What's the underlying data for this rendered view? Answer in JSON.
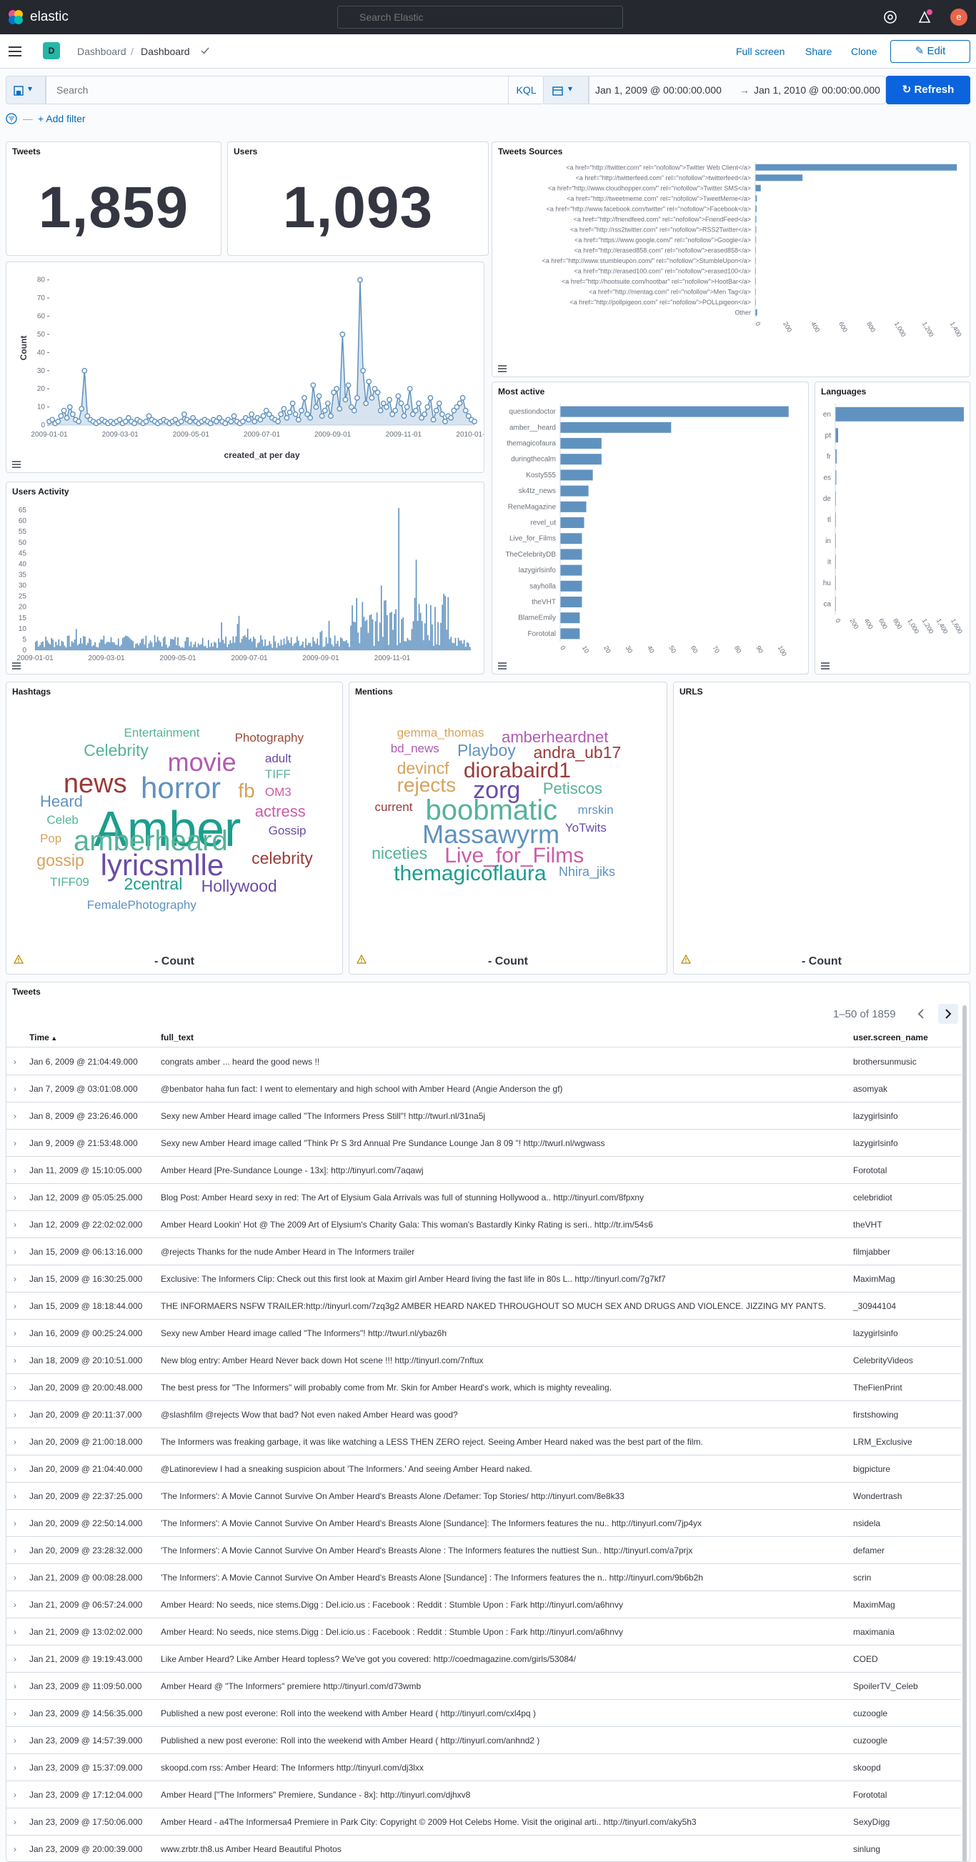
{
  "app": {
    "brand": "elastic",
    "search_placeholder": "Search Elastic",
    "user_initial": "e"
  },
  "nav": {
    "space_initial": "D",
    "breadcrumb": [
      "Dashboard",
      "Dashboard"
    ],
    "links": [
      "Full screen",
      "Share",
      "Clone"
    ],
    "edit_label": "Edit"
  },
  "query": {
    "placeholder": "Search",
    "language": "KQL",
    "start": "Jan 1, 2009 @ 00:00:00.000",
    "arrow": "→",
    "end": "Jan 1, 2010 @ 00:00:00.000",
    "refresh_label": "Refresh"
  },
  "filters": {
    "add_label": "+ Add filter"
  },
  "metrics": [
    {
      "title": "Tweets",
      "value": "1,859"
    },
    {
      "title": "Users",
      "value": "1,093"
    }
  ],
  "sources": {
    "title": "Tweets Sources",
    "labels": [
      "<a href=\"http://twitter.com\" rel=\"nofollow\">Twitter Web Client</a>",
      "<a href=\"http://twitterfeed.com\" rel=\"nofollow\">twitterfeed</a>",
      "<a href=\"http://www.cloudhopper.com/\" rel=\"nofollow\">Twitter SMS</a>",
      "<a href=\"http://tweetmeme.com\" rel=\"nofollow\">TweetMeme</a>",
      "<a href=\"http://www.facebook.com/twitter\" rel=\"nofollow\">Facebook</a>",
      "<a href=\"http://friendfeed.com\" rel=\"nofollow\">FriendFeed</a>",
      "<a href=\"http://rss2twitter.com\" rel=\"nofollow\">RSS2Twitter</a>",
      "<a href=\"https://www.google.com/\" rel=\"nofollow\">Google</a>",
      "<a href=\"http://erased858.com\" rel=\"nofollow\">erased858</a>",
      "<a href=\"http://www.stumbleupon.com/\" rel=\"nofollow\">StumbleUpon</a>",
      "<a href=\"http://erased100.com\" rel=\"nofollow\">erased100</a>",
      "<a href=\"http://hootsuite.com/hootbar\" rel=\"nofollow\">HootBar</a>",
      "<a href=\"http://mentag.com\" rel=\"nofollow\">Men Tag</a>",
      "<a href=\"http://pollpigeon.com\" rel=\"nofollow\">POLLpigeon</a>",
      "Other"
    ],
    "values": [
      1450,
      340,
      40,
      12,
      10,
      8,
      7,
      6,
      5,
      4,
      3,
      3,
      2,
      2,
      14
    ],
    "ticks": [
      "0",
      "200",
      "400",
      "600",
      "800",
      "1,000",
      "1,200",
      "1,400"
    ],
    "xmax": 1500
  },
  "created": {
    "xlabel": "created_at per day",
    "ylabel": "Count",
    "xticks": [
      "2009-01-01",
      "2009-03-01",
      "2009-05-01",
      "2009-07-01",
      "2009-09-01",
      "2009-11-01",
      "2010-01-01"
    ],
    "yticks": [
      "0",
      "10",
      "20",
      "30",
      "40",
      "50",
      "60",
      "70",
      "80"
    ],
    "ymax": 85,
    "points": [
      2,
      3,
      1,
      2,
      5,
      8,
      4,
      10,
      6,
      3,
      2,
      9,
      30,
      5,
      3,
      2,
      1,
      2,
      3,
      2,
      1,
      2,
      1,
      2,
      3,
      1,
      2,
      4,
      2,
      1,
      3,
      2,
      1,
      2,
      5,
      3,
      2,
      1,
      2,
      3,
      2,
      1,
      2,
      3,
      1,
      2,
      6,
      3,
      2,
      4,
      2,
      1,
      2,
      3,
      2,
      1,
      3,
      2,
      4,
      2,
      1,
      3,
      2,
      5,
      2,
      1,
      2,
      4,
      3,
      6,
      2,
      4,
      3,
      5,
      8,
      6,
      4,
      3,
      2,
      6,
      9,
      4,
      7,
      12,
      6,
      3,
      8,
      15,
      6,
      4,
      22,
      10,
      16,
      5,
      8,
      12,
      5,
      18,
      20,
      9,
      50,
      14,
      22,
      10,
      8,
      15,
      80,
      30,
      12,
      24,
      15,
      20,
      18,
      8,
      12,
      10,
      14,
      6,
      8,
      16,
      12,
      5,
      10,
      20,
      6,
      8,
      12,
      4,
      6,
      10,
      15,
      3,
      8,
      12,
      6,
      2,
      5,
      4,
      8,
      10,
      12,
      15,
      8,
      5,
      3,
      2
    ]
  },
  "users_activity": {
    "title": "Users Activity",
    "xticks": [
      "2009-01-01",
      "2009-03-01",
      "2009-05-01",
      "2009-07-01",
      "2009-09-01",
      "2009-11-01"
    ],
    "yticks": [
      "0",
      "5",
      "10",
      "15",
      "20",
      "25",
      "30",
      "35",
      "40",
      "45",
      "50",
      "55",
      "60",
      "65"
    ],
    "ymax": 68
  },
  "most_active": {
    "title": "Most active",
    "labels": [
      "questiondoctor",
      "amber__heard",
      "themagicofaura",
      "duringthecalm",
      "Kosty555",
      "sk4tz_news",
      "ReneMagazine",
      "revel_ut",
      "Live_for_Films",
      "TheCelebrityDB",
      "lazygirlsinfo",
      "sayholla",
      "theVHT",
      "BlameEmily",
      "Forototal"
    ],
    "values": [
      105,
      51,
      19,
      19,
      15,
      13,
      12,
      11,
      10,
      10,
      10,
      10,
      10,
      9,
      9
    ],
    "ticks": [
      "0",
      "10",
      "20",
      "30",
      "40",
      "50",
      "60",
      "70",
      "80",
      "90",
      "100"
    ],
    "xmax": 110
  },
  "languages": {
    "title": "Languages",
    "labels": [
      "en",
      "pt",
      "fr",
      "es",
      "de",
      "tl",
      "in",
      "it",
      "hu",
      "ca"
    ],
    "values": [
      1780,
      40,
      20,
      15,
      10,
      8,
      6,
      5,
      4,
      3
    ],
    "ticks": [
      "0",
      "200",
      "400",
      "600",
      "800",
      "1,000",
      "1,200",
      "1,400",
      "1,600"
    ],
    "xmax": 1800
  },
  "hashtags": {
    "title": "Hashtags",
    "count_label": "- Count",
    "words": [
      {
        "text": "Entertainment",
        "size": 17,
        "color": "#54b399",
        "x": 35,
        "y": 10
      },
      {
        "text": "Photography",
        "size": 17,
        "color": "#9a4a3a",
        "x": 68,
        "y": 12
      },
      {
        "text": "Celebrity",
        "size": 23,
        "color": "#54b399",
        "x": 23,
        "y": 16
      },
      {
        "text": "movie",
        "size": 36,
        "color": "#b05bb0",
        "x": 48,
        "y": 19
      },
      {
        "text": "news",
        "size": 38,
        "color": "#9a3a3a",
        "x": 17,
        "y": 27
      },
      {
        "text": "horror",
        "size": 42,
        "color": "#6092c0",
        "x": 40,
        "y": 28
      },
      {
        "text": "adult",
        "size": 17,
        "color": "#6a4ca8",
        "x": 77,
        "y": 20
      },
      {
        "text": "TIFF",
        "size": 17,
        "color": "#54b399",
        "x": 77,
        "y": 26
      },
      {
        "text": "fb",
        "size": 28,
        "color": "#d6a35c",
        "x": 69,
        "y": 31
      },
      {
        "text": "Heard",
        "size": 22,
        "color": "#6092c0",
        "x": 10,
        "y": 36
      },
      {
        "text": "OM3",
        "size": 17,
        "color": "#ca5ca8",
        "x": 77,
        "y": 33
      },
      {
        "text": "Amber",
        "size": 70,
        "color": "#1c9e8c",
        "x": 26,
        "y": 40
      },
      {
        "text": "Celeb",
        "size": 17,
        "color": "#54b399",
        "x": 12,
        "y": 44
      },
      {
        "text": "actress",
        "size": 22,
        "color": "#ca5ca8",
        "x": 74,
        "y": 40
      },
      {
        "text": "Pop",
        "size": 17,
        "color": "#d6a35c",
        "x": 10,
        "y": 51
      },
      {
        "text": "amberheard",
        "size": 40,
        "color": "#54b399",
        "x": 20,
        "y": 49
      },
      {
        "text": "Gossip",
        "size": 17,
        "color": "#6a4ca8",
        "x": 78,
        "y": 48
      },
      {
        "text": "gossip",
        "size": 23,
        "color": "#d6a35c",
        "x": 9,
        "y": 59
      },
      {
        "text": "lyricsmlle",
        "size": 42,
        "color": "#6a4ca8",
        "x": 28,
        "y": 58
      },
      {
        "text": "celebrity",
        "size": 23,
        "color": "#9a3a3a",
        "x": 73,
        "y": 58
      },
      {
        "text": "TIFF09",
        "size": 17,
        "color": "#54b399",
        "x": 13,
        "y": 68
      },
      {
        "text": "2central",
        "size": 23,
        "color": "#1c9e8c",
        "x": 35,
        "y": 68
      },
      {
        "text": "Hollywood",
        "size": 23,
        "color": "#6a4ca8",
        "x": 58,
        "y": 69
      },
      {
        "text": "FemalePhotography",
        "size": 17,
        "color": "#6092c0",
        "x": 24,
        "y": 77
      }
    ]
  },
  "mentions": {
    "title": "Mentions",
    "count_label": "- Count",
    "words": [
      {
        "text": "gemma_thomas",
        "size": 17,
        "color": "#d6a35c",
        "x": 15,
        "y": 10
      },
      {
        "text": "amberheardnet",
        "size": 22,
        "color": "#b05bb0",
        "x": 48,
        "y": 11
      },
      {
        "text": "bd_news",
        "size": 17,
        "color": "#b05bb0",
        "x": 13,
        "y": 16
      },
      {
        "text": "Playboy",
        "size": 23,
        "color": "#6092c0",
        "x": 34,
        "y": 16
      },
      {
        "text": "andra_ub17",
        "size": 23,
        "color": "#9a3a3a",
        "x": 58,
        "y": 17
      },
      {
        "text": "devincf",
        "size": 23,
        "color": "#d6a35c",
        "x": 15,
        "y": 23
      },
      {
        "text": "diorabaird1",
        "size": 30,
        "color": "#9a3a3a",
        "x": 36,
        "y": 23
      },
      {
        "text": "rejects",
        "size": 28,
        "color": "#d6a35c",
        "x": 15,
        "y": 29
      },
      {
        "text": "zorg",
        "size": 34,
        "color": "#6a4ca8",
        "x": 39,
        "y": 30
      },
      {
        "text": "Petiscos",
        "size": 22,
        "color": "#54b399",
        "x": 61,
        "y": 31
      },
      {
        "text": "current",
        "size": 17,
        "color": "#9a3a3a",
        "x": 8,
        "y": 39
      },
      {
        "text": "boobmatic",
        "size": 40,
        "color": "#54b399",
        "x": 24,
        "y": 37
      },
      {
        "text": "mrskin",
        "size": 17,
        "color": "#6092c0",
        "x": 72,
        "y": 40
      },
      {
        "text": "Massawyrm",
        "size": 36,
        "color": "#6092c0",
        "x": 23,
        "y": 47
      },
      {
        "text": "YoTwits",
        "size": 17,
        "color": "#6a4ca8",
        "x": 68,
        "y": 47
      },
      {
        "text": "niceties",
        "size": 23,
        "color": "#54b399",
        "x": 7,
        "y": 56
      },
      {
        "text": "Live_for_Films",
        "size": 30,
        "color": "#ca5ca8",
        "x": 30,
        "y": 56
      },
      {
        "text": "themagicoflaura",
        "size": 30,
        "color": "#1c9e8c",
        "x": 14,
        "y": 63
      },
      {
        "text": "Nhira_jiks",
        "size": 18,
        "color": "#6092c0",
        "x": 66,
        "y": 64
      }
    ]
  },
  "urls": {
    "title": "URLS",
    "count_label": "- Count"
  },
  "tweets": {
    "title": "Tweets",
    "pagination": "1–50 of 1859",
    "columns": [
      "Time",
      "full_text",
      "user.screen_name"
    ],
    "rows": [
      [
        "Jan 6, 2009 @ 21:04:49.000",
        "congrats amber ... heard the good news !!",
        "brothersunmusic"
      ],
      [
        "Jan 7, 2009 @ 03:01:08.000",
        "@benbator haha fun fact: I went to elementary and high school with Amber Heard (Angie Anderson the gf)",
        "asomyak"
      ],
      [
        "Jan 8, 2009 @ 23:26:46.000",
        "Sexy new Amber Heard image called \"The Informers Press Still\"! http://twurl.nl/31na5j",
        "lazygirlsinfo"
      ],
      [
        "Jan 9, 2009 @ 21:53:48.000",
        "Sexy new Amber Heard image called \"Think Pr S 3rd Annual Pre Sundance Lounge Jan 8 09 \"! http://twurl.nl/wgwass",
        "lazygirlsinfo"
      ],
      [
        "Jan 11, 2009 @ 15:10:05.000",
        "Amber Heard [Pre-Sundance Lounge - 13x]: http://tinyurl.com/7aqawj",
        "Forototal"
      ],
      [
        "Jan 12, 2009 @ 05:05:25.000",
        "Blog Post: Amber Heard sexy in red: The Art of Elysium Gala Arrivals was full of stunning Hollywood a.. http://tinyurl.com/8fpxny",
        "celebridiot"
      ],
      [
        "Jan 12, 2009 @ 22:02:02.000",
        "Amber Heard Lookin' Hot @ The 2009 Art of Elysium's Charity Gala: This woman's Bastardly Kinky Rating is seri.. http://tr.im/54s6",
        "theVHT"
      ],
      [
        "Jan 15, 2009 @ 06:13:16.000",
        "@rejects Thanks for the nude Amber Heard in The Informers trailer",
        "filmjabber"
      ],
      [
        "Jan 15, 2009 @ 16:30:25.000",
        "Exclusive: The Informers Clip: Check out this first look at Maxim girl Amber Heard living the fast life in 80s L.. http://tinyurl.com/7g7kf7",
        "MaximMag"
      ],
      [
        "Jan 15, 2009 @ 18:18:44.000",
        "THE INFORMAERS NSFW TRAILER:http://tinyurl.com/7zq3g2 AMBER HEARD NAKED THROUGHOUT SO MUCH SEX AND DRUGS AND VIOLENCE. JIZZING MY PANTS.",
        "_30944104"
      ],
      [
        "Jan 16, 2009 @ 00:25:24.000",
        "Sexy new Amber Heard image called \"The Informers\"! http://twurl.nl/ybaz6h",
        "lazygirlsinfo"
      ],
      [
        "Jan 18, 2009 @ 20:10:51.000",
        "New blog entry: Amber Heard Never back down Hot scene !!! http://tinyurl.com/7nftux",
        "CelebrityVideos"
      ],
      [
        "Jan 20, 2009 @ 20:00:48.000",
        "The best press for \"The Informers\" will probably come from Mr. Skin for Amber Heard's work, which is mighty revealing.",
        "TheFienPrint"
      ],
      [
        "Jan 20, 2009 @ 20:11:37.000",
        "@slashfilm @rejects Wow that bad? Not even naked Amber Heard was good?",
        "firstshowing"
      ],
      [
        "Jan 20, 2009 @ 21:00:18.000",
        "The Informers was freaking garbage, it was like watching a LESS THEN ZERO reject. Seeing Amber Heard naked was the best part of the film.",
        "LRM_Exclusive"
      ],
      [
        "Jan 20, 2009 @ 21:04:40.000",
        "@Latinoreview I had a sneaking suspicion about 'The Informers.' And seeing Amber Heard naked.",
        "bigpicture"
      ],
      [
        "Jan 20, 2009 @ 22:37:25.000",
        "'The Informers': A Movie Cannot Survive On Amber Heard's Breasts Alone /Defamer: Top Stories/ http://tinyurl.com/8e8k33",
        "Wondertrash"
      ],
      [
        "Jan 20, 2009 @ 22:50:14.000",
        "'The Informers': A Movie Cannot Survive On Amber Heard's Breasts Alone [Sundance]: The Informers features the nu.. http://tinyurl.com/7jp4yx",
        "nsidela"
      ],
      [
        "Jan 20, 2009 @ 23:28:32.000",
        "'The Informers': A Movie Cannot Survive On Amber Heard's Breasts Alone : The Informers features the nuttiest Sun.. http://tinyurl.com/a7prjx",
        "defamer"
      ],
      [
        "Jan 21, 2009 @ 00:08:28.000",
        "'The Informers': A Movie Cannot Survive On Amber Heard's Breasts Alone [Sundance] : The Informers features the n.. http://tinyurl.com/9b6b2h",
        "scrin"
      ],
      [
        "Jan 21, 2009 @ 06:57:24.000",
        "Amber Heard: No seeds, nice stems.Digg : Del.icio.us : Facebook : Reddit : Stumble Upon : Fark http://tinyurl.com/a6hnvy",
        "MaximMag"
      ],
      [
        "Jan 21, 2009 @ 13:02:02.000",
        "Amber Heard: No seeds, nice stems.Digg : Del.icio.us : Facebook : Reddit : Stumble Upon : Fark http://tinyurl.com/a6hnvy",
        "maximania"
      ],
      [
        "Jan 21, 2009 @ 19:19:43.000",
        "Like Amber Heard? Like Amber Heard topless? We've got you covered: http://coedmagazine.com/girls/53084/",
        "COED"
      ],
      [
        "Jan 23, 2009 @ 11:09:50.000",
        "Amber Heard @ \"The Informers\" premiere http://tinyurl.com/d73wmb",
        "SpoilerTV_Celeb"
      ],
      [
        "Jan 23, 2009 @ 14:56:35.000",
        "Published a new post everone: Roll into the weekend with Amber Heard ( http://tinyurl.com/cxl4pq )",
        "cuzoogle"
      ],
      [
        "Jan 23, 2009 @ 14:57:39.000",
        "Published a new post everone: Roll into the weekend with Amber Heard ( http://tinyurl.com/anhnd2 )",
        "cuzoogle"
      ],
      [
        "Jan 23, 2009 @ 15:37:09.000",
        "skoopd.com rss: Amber Heard: The Informers http://tinyurl.com/dj3lxx",
        "skoopd"
      ],
      [
        "Jan 23, 2009 @ 17:12:04.000",
        "Amber Heard [\"The Informers\" Premiere, Sundance - 8x]: http://tinyurl.com/djhxv8",
        "Forototal"
      ],
      [
        "Jan 23, 2009 @ 17:50:06.000",
        "Amber Heard - a4The Informersa4 Premiere in Park City: Copyright © 2009 Hot Celebs Home. Visit the original arti.. http://tinyurl.com/aky5h3",
        "SexyDigg"
      ],
      [
        "Jan 23, 2009 @ 20:00:39.000",
        "www.zrbtr.th8.us Amber Heard Beautiful Photos",
        "sinlung"
      ]
    ]
  }
}
